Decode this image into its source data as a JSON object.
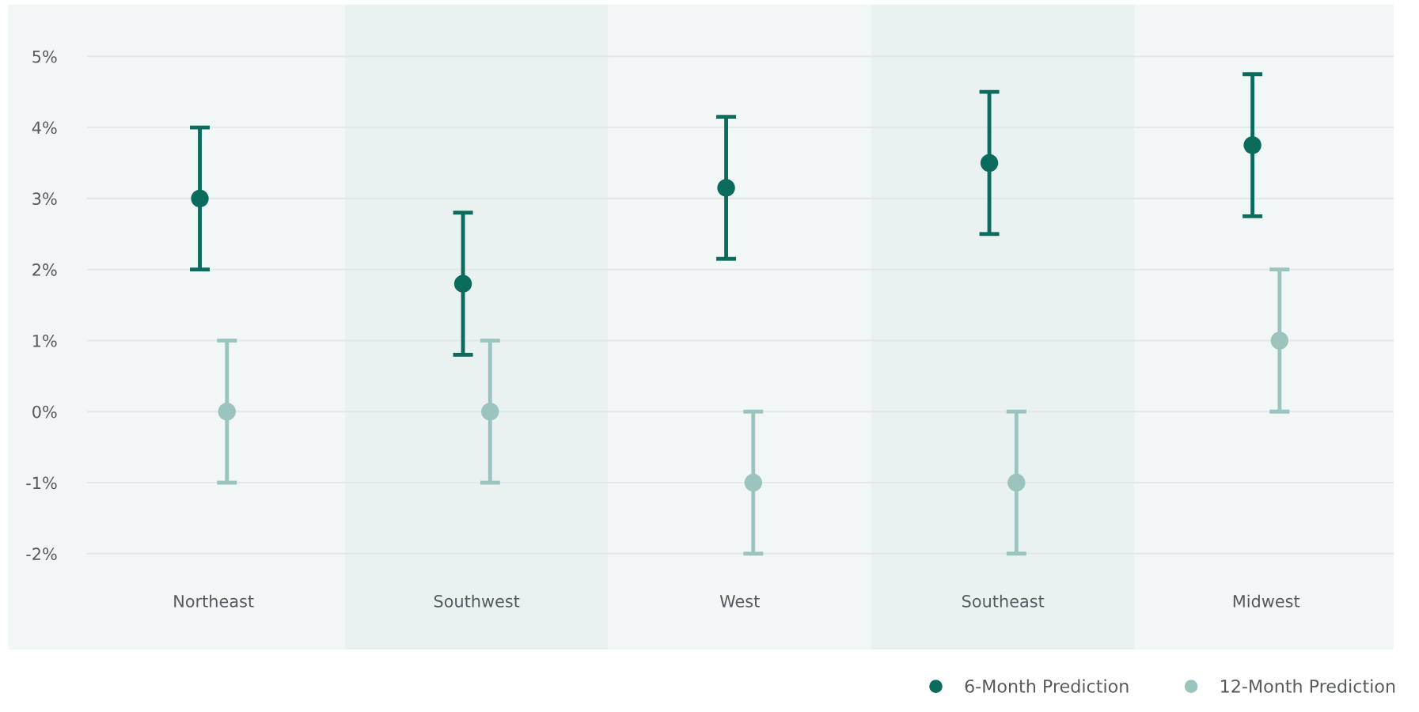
{
  "chart_data": {
    "type": "scatter",
    "categories": [
      "Northeast",
      "Southwest",
      "West",
      "Southeast",
      "Midwest"
    ],
    "series": [
      {
        "name": "6-Month Prediction",
        "color": "#0b6b5c",
        "values": [
          3.0,
          1.8,
          3.15,
          3.5,
          3.75
        ],
        "errors": [
          1,
          1,
          1,
          1,
          1
        ]
      },
      {
        "name": "12-Month Prediction",
        "color": "#9cc4be",
        "values": [
          0,
          0,
          -1,
          -1,
          1
        ],
        "errors": [
          1,
          1,
          1,
          1,
          1
        ]
      }
    ],
    "ylim": [
      -3.35,
      5.73
    ],
    "yticks": [
      {
        "value": -2,
        "label": "-2%"
      },
      {
        "value": -1,
        "label": "-1%"
      },
      {
        "value": 0,
        "label": "0%"
      },
      {
        "value": 1,
        "label": "1%"
      },
      {
        "value": 2,
        "label": "2%"
      },
      {
        "value": 3,
        "label": "3%"
      },
      {
        "value": 4,
        "label": "4%"
      },
      {
        "value": 5,
        "label": "5%"
      }
    ],
    "grid": "y",
    "legend": "bottom right",
    "marker": "circle"
  }
}
